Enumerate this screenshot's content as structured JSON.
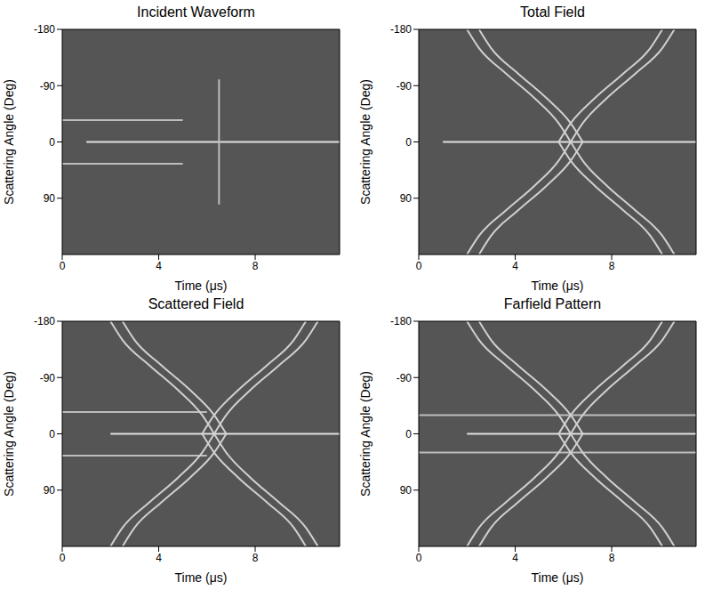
{
  "chart_data": [
    {
      "type": "line",
      "title": "Incident Waveform",
      "x_label": "Time (μs)",
      "y_label": "Scattering Angle (Deg)",
      "xlim": [
        0,
        11.5
      ],
      "xticks": [
        0,
        4,
        8
      ],
      "ylim": [
        -180,
        180
      ],
      "yticks": [
        -180,
        -90,
        0,
        90
      ],
      "grid": false,
      "series": [
        {
          "color": "#e0e0e0",
          "line_style": "solid",
          "x": [
            1,
            11.5
          ],
          "values": [
            0,
            0
          ]
        },
        {
          "color": "#bdbdbd",
          "line_style": "solid",
          "x": [
            0,
            5
          ],
          "values": [
            -35,
            -35
          ]
        },
        {
          "color": "#bdbdbd",
          "line_style": "solid",
          "x": [
            0,
            5
          ],
          "values": [
            35,
            35
          ]
        },
        {
          "color": "#bdbdbd",
          "line_style": "solid",
          "x": [
            6.5,
            6.5
          ],
          "values": [
            -100,
            100
          ]
        }
      ]
    },
    {
      "type": "line",
      "title": "Total Field",
      "x_label": "Time (μs)",
      "y_label": "Scattering Angle (Deg)",
      "xlim": [
        0,
        11.5
      ],
      "xticks": [
        0,
        4,
        8
      ],
      "ylim": [
        -180,
        180
      ],
      "yticks": [
        -180,
        -90,
        0,
        90
      ],
      "grid": false,
      "series": [
        {
          "color": "#e0e0e0",
          "line_style": "solid",
          "x": [
            1,
            11.5
          ],
          "values": [
            0,
            0
          ]
        },
        {
          "color": "#d0d0d0",
          "line_style": "solid",
          "x": [
            6.3,
            5.8,
            4.8,
            3.6,
            2.5,
            2.0
          ],
          "values": [
            0,
            -30,
            -70,
            -110,
            -150,
            -180
          ]
        },
        {
          "color": "#d0d0d0",
          "line_style": "solid",
          "x": [
            6.8,
            6.3,
            5.3,
            4.1,
            3.0,
            2.5
          ],
          "values": [
            0,
            -30,
            -70,
            -110,
            -150,
            -180
          ]
        },
        {
          "color": "#d0d0d0",
          "line_style": "solid",
          "x": [
            6.3,
            6.8,
            7.8,
            9.0,
            10.1,
            10.6
          ],
          "values": [
            0,
            -30,
            -70,
            -110,
            -150,
            -180
          ]
        },
        {
          "color": "#d0d0d0",
          "line_style": "solid",
          "x": [
            5.8,
            6.3,
            7.3,
            8.5,
            9.6,
            10.1
          ],
          "values": [
            0,
            -30,
            -70,
            -110,
            -150,
            -180
          ]
        },
        {
          "color": "#d0d0d0",
          "line_style": "solid",
          "x": [
            6.3,
            5.8,
            4.8,
            3.6,
            2.5,
            2.0
          ],
          "values": [
            0,
            30,
            70,
            110,
            150,
            180
          ]
        },
        {
          "color": "#d0d0d0",
          "line_style": "solid",
          "x": [
            6.8,
            6.3,
            5.3,
            4.1,
            3.0,
            2.5
          ],
          "values": [
            0,
            30,
            70,
            110,
            150,
            180
          ]
        },
        {
          "color": "#d0d0d0",
          "line_style": "solid",
          "x": [
            6.3,
            6.8,
            7.8,
            9.0,
            10.1,
            10.6
          ],
          "values": [
            0,
            30,
            70,
            110,
            150,
            180
          ]
        },
        {
          "color": "#d0d0d0",
          "line_style": "solid",
          "x": [
            5.8,
            6.3,
            7.3,
            8.5,
            9.6,
            10.1
          ],
          "values": [
            0,
            30,
            70,
            110,
            150,
            180
          ]
        }
      ]
    },
    {
      "type": "line",
      "title": "Scattered Field",
      "x_label": "Time (μs)",
      "y_label": "Scattering Angle (Deg)",
      "xlim": [
        0,
        11.5
      ],
      "xticks": [
        0,
        4,
        8
      ],
      "ylim": [
        -180,
        180
      ],
      "yticks": [
        -180,
        -90,
        0,
        90
      ],
      "grid": false,
      "series": [
        {
          "color": "#e0e0e0",
          "line_style": "solid",
          "x": [
            2,
            11.5
          ],
          "values": [
            0,
            0
          ]
        },
        {
          "color": "#bdbdbd",
          "line_style": "solid",
          "x": [
            0,
            6
          ],
          "values": [
            -35,
            -35
          ]
        },
        {
          "color": "#bdbdbd",
          "line_style": "solid",
          "x": [
            0,
            6
          ],
          "values": [
            35,
            35
          ]
        },
        {
          "color": "#d0d0d0",
          "line_style": "solid",
          "x": [
            6.3,
            5.8,
            4.8,
            3.6,
            2.5,
            2.0
          ],
          "values": [
            0,
            -30,
            -70,
            -110,
            -150,
            -180
          ]
        },
        {
          "color": "#d0d0d0",
          "line_style": "solid",
          "x": [
            6.8,
            6.3,
            5.3,
            4.1,
            3.0,
            2.5
          ],
          "values": [
            0,
            -30,
            -70,
            -110,
            -150,
            -180
          ]
        },
        {
          "color": "#d0d0d0",
          "line_style": "solid",
          "x": [
            6.3,
            6.8,
            7.8,
            9.0,
            10.1,
            10.6
          ],
          "values": [
            0,
            -30,
            -70,
            -110,
            -150,
            -180
          ]
        },
        {
          "color": "#d0d0d0",
          "line_style": "solid",
          "x": [
            5.8,
            6.3,
            7.3,
            8.5,
            9.6,
            10.1
          ],
          "values": [
            0,
            -30,
            -70,
            -110,
            -150,
            -180
          ]
        },
        {
          "color": "#d0d0d0",
          "line_style": "solid",
          "x": [
            6.3,
            5.8,
            4.8,
            3.6,
            2.5,
            2.0
          ],
          "values": [
            0,
            30,
            70,
            110,
            150,
            180
          ]
        },
        {
          "color": "#d0d0d0",
          "line_style": "solid",
          "x": [
            6.8,
            6.3,
            5.3,
            4.1,
            3.0,
            2.5
          ],
          "values": [
            0,
            30,
            70,
            110,
            150,
            180
          ]
        },
        {
          "color": "#d0d0d0",
          "line_style": "solid",
          "x": [
            6.3,
            6.8,
            7.8,
            9.0,
            10.1,
            10.6
          ],
          "values": [
            0,
            30,
            70,
            110,
            150,
            180
          ]
        },
        {
          "color": "#d0d0d0",
          "line_style": "solid",
          "x": [
            5.8,
            6.3,
            7.3,
            8.5,
            9.6,
            10.1
          ],
          "values": [
            0,
            30,
            70,
            110,
            150,
            180
          ]
        }
      ]
    },
    {
      "type": "line",
      "title": "Farfield Pattern",
      "x_label": "Time (μs)",
      "y_label": "Scattering Angle (Deg)",
      "xlim": [
        0,
        11.5
      ],
      "xticks": [
        0,
        4,
        8
      ],
      "ylim": [
        -180,
        180
      ],
      "yticks": [
        -180,
        -90,
        0,
        90
      ],
      "grid": false,
      "series": [
        {
          "color": "#e0e0e0",
          "line_style": "solid",
          "x": [
            2,
            11.5
          ],
          "values": [
            0,
            0
          ]
        },
        {
          "color": "#bdbdbd",
          "line_style": "solid",
          "x": [
            0,
            11.5
          ],
          "values": [
            -30,
            -30
          ]
        },
        {
          "color": "#bdbdbd",
          "line_style": "solid",
          "x": [
            0,
            11.5
          ],
          "values": [
            30,
            30
          ]
        },
        {
          "color": "#d0d0d0",
          "line_style": "solid",
          "x": [
            6.3,
            5.8,
            4.8,
            3.6,
            2.5,
            2.0
          ],
          "values": [
            0,
            -30,
            -70,
            -110,
            -150,
            -180
          ]
        },
        {
          "color": "#d0d0d0",
          "line_style": "solid",
          "x": [
            6.8,
            6.3,
            5.3,
            4.1,
            3.0,
            2.5
          ],
          "values": [
            0,
            -30,
            -70,
            -110,
            -150,
            -180
          ]
        },
        {
          "color": "#d0d0d0",
          "line_style": "solid",
          "x": [
            6.3,
            6.8,
            7.8,
            9.0,
            10.1,
            10.6
          ],
          "values": [
            0,
            -30,
            -70,
            -110,
            -150,
            -180
          ]
        },
        {
          "color": "#d0d0d0",
          "line_style": "solid",
          "x": [
            5.8,
            6.3,
            7.3,
            8.5,
            9.6,
            10.1
          ],
          "values": [
            0,
            -30,
            -70,
            -110,
            -150,
            -180
          ]
        },
        {
          "color": "#d0d0d0",
          "line_style": "solid",
          "x": [
            6.3,
            5.8,
            4.8,
            3.6,
            2.5,
            2.0
          ],
          "values": [
            0,
            30,
            70,
            110,
            150,
            180
          ]
        },
        {
          "color": "#d0d0d0",
          "line_style": "solid",
          "x": [
            6.8,
            6.3,
            5.3,
            4.1,
            3.0,
            2.5
          ],
          "values": [
            0,
            30,
            70,
            110,
            150,
            180
          ]
        },
        {
          "color": "#d0d0d0",
          "line_style": "solid",
          "x": [
            6.3,
            6.8,
            7.8,
            9.0,
            10.1,
            10.6
          ],
          "values": [
            0,
            30,
            70,
            110,
            150,
            180
          ]
        },
        {
          "color": "#d0d0d0",
          "line_style": "solid",
          "x": [
            5.8,
            6.3,
            7.3,
            8.5,
            9.6,
            10.1
          ],
          "values": [
            0,
            30,
            70,
            110,
            150,
            180
          ]
        }
      ]
    }
  ]
}
